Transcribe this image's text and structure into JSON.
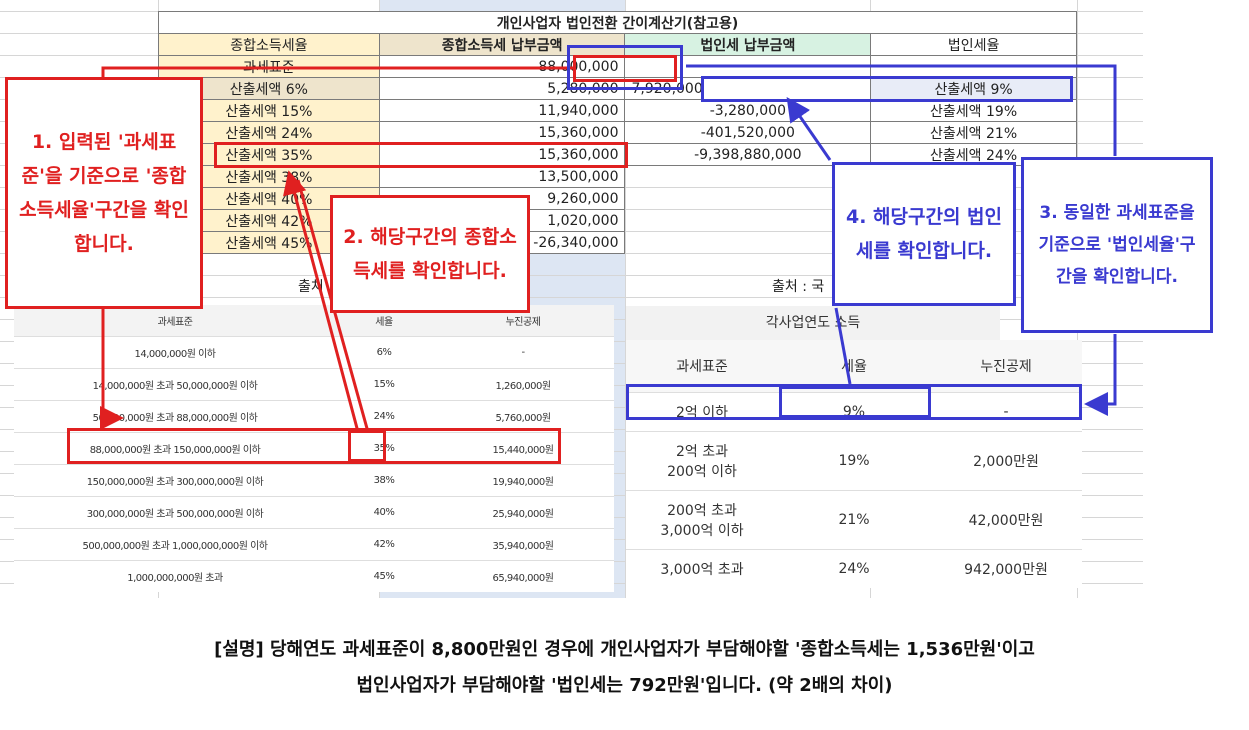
{
  "calc": {
    "title": "개인사업자 법인전환 간이계산기(참고용)",
    "header": {
      "col1": "종합소득세율",
      "col2": "종합소득세 납부금액",
      "col3": "법인세 납부금액",
      "col4": "법인세율"
    },
    "base_label": "과세표준",
    "base_value": "88,000,000",
    "rows": [
      {
        "label": "산출세액 6%",
        "pit": "5,280,000",
        "cit": "7,920,000",
        "rate": "산출세액 9%"
      },
      {
        "label": "산출세액 15%",
        "pit": "11,940,000",
        "cit": "-3,280,000",
        "rate": "산출세액 19%"
      },
      {
        "label": "산출세액 24%",
        "pit": "15,360,000",
        "cit": "-401,520,000",
        "rate": "산출세액 21%"
      },
      {
        "label": "산출세액 35%",
        "pit": "15,360,000",
        "cit": "-9,398,880,000",
        "rate": "산출세액 24%"
      },
      {
        "label": "산출세액 38%",
        "pit": "13,500,000"
      },
      {
        "label": "산출세액 40%",
        "pit": "9,260,000"
      },
      {
        "label": "산출세액 42%",
        "pit": "1,020,000"
      },
      {
        "label": "산출세액 45%",
        "pit": "-26,340,000"
      }
    ],
    "source_left": "출처",
    "source_right": "출처 : 국"
  },
  "pit_table": {
    "headers": [
      "과세표준",
      "세율",
      "누진공제"
    ],
    "rows": [
      [
        "14,000,000원 이하",
        "6%",
        "-"
      ],
      [
        "14,000,000원 초과 50,000,000원 이하",
        "15%",
        "1,260,000원"
      ],
      [
        "50,000,000원 초과 88,000,000원 이하",
        "24%",
        "5,760,000원"
      ],
      [
        "88,000,000원 초과 150,000,000원 이하",
        "35%",
        "15,440,000원"
      ],
      [
        "150,000,000원 초과 300,000,000원 이하",
        "38%",
        "19,940,000원"
      ],
      [
        "300,000,000원 초과 500,000,000원 이하",
        "40%",
        "25,940,000원"
      ],
      [
        "500,000,000원 초과 1,000,000,000원 이하",
        "42%",
        "35,940,000원"
      ],
      [
        "1,000,000,000원 초과",
        "45%",
        "65,940,000원"
      ]
    ]
  },
  "cit_table": {
    "caption": "각사업연도 소득",
    "headers": [
      "과세표준",
      "세율",
      "누진공제"
    ],
    "rows": [
      [
        "2억 이하",
        "9%",
        "-"
      ],
      [
        "2억 초과\n200억 이하",
        "19%",
        "2,000만원"
      ],
      [
        "200억 초과\n3,000억 이하",
        "21%",
        "42,000만원"
      ],
      [
        "3,000억 초과",
        "24%",
        "942,000만원"
      ]
    ]
  },
  "callouts": {
    "c1": "1. 입력된 '과세표준'을 기준으로 '종합소득세율'구간을 확인합니다.",
    "c2": "2. 해당구간의 종합소득세를 확인합니다.",
    "c3": "3. 동일한 과세표준을 기준으로 '법인세율'구간을 확인합니다.",
    "c4": "4. 해당구간의 법인세를 확인합니다."
  },
  "note": {
    "line1": "[설명] 당해연도 과세표준이 8,800만원인 경우에 개인사업자가 부담해야할 '종합소득세는 1,536만원'이고",
    "line2": "법인사업자가 부담해야할 '법인세는 792만원'입니다. (약 2배의 차이)"
  },
  "colors": {
    "red": "#e02020",
    "blue": "#3a3ad0",
    "yellow": "#fff2cc",
    "green": "#d7f2e2"
  }
}
